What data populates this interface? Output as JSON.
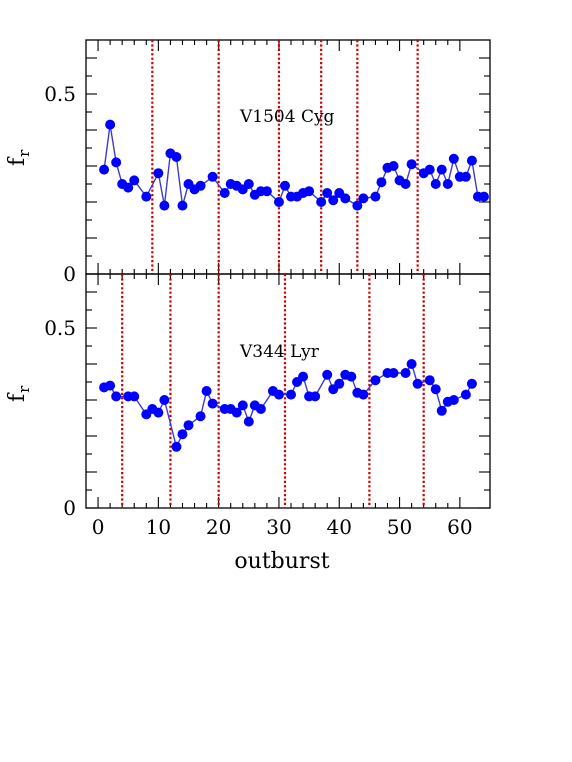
{
  "chart_data": [
    {
      "type": "line",
      "label": "V1504 Cyg",
      "ylabel": "f",
      "ylabel_sub": "r",
      "xlim": [
        -2,
        65
      ],
      "ylim": [
        0,
        0.65
      ],
      "ytick_labels": [
        "0.5",
        "0"
      ],
      "ytick_values": [
        0.5,
        0
      ],
      "x": [
        1,
        2,
        3,
        4,
        5,
        6,
        8,
        10,
        11,
        12,
        13,
        14,
        15,
        16,
        17,
        19,
        21,
        22,
        23,
        24,
        25,
        26,
        27,
        28,
        30,
        31,
        32,
        33,
        34,
        35,
        37,
        38,
        39,
        40,
        41,
        43,
        44,
        46,
        47,
        48,
        49,
        50,
        51,
        52,
        54,
        55,
        56,
        57,
        58,
        59,
        60,
        61,
        62,
        63,
        64
      ],
      "values": [
        0.29,
        0.415,
        0.31,
        0.25,
        0.24,
        0.26,
        0.215,
        0.28,
        0.19,
        0.335,
        0.325,
        0.19,
        0.25,
        0.235,
        0.245,
        0.27,
        0.225,
        0.25,
        0.245,
        0.235,
        0.25,
        0.22,
        0.23,
        0.23,
        0.2,
        0.245,
        0.215,
        0.215,
        0.225,
        0.23,
        0.2,
        0.225,
        0.205,
        0.225,
        0.21,
        0.19,
        0.21,
        0.215,
        0.255,
        0.295,
        0.3,
        0.26,
        0.25,
        0.305,
        0.28,
        0.29,
        0.25,
        0.29,
        0.25,
        0.32,
        0.27,
        0.27,
        0.315,
        0.215,
        0.215
      ],
      "vlines": [
        9,
        20,
        30,
        37,
        43,
        53
      ],
      "series_color": "#0000ff",
      "line_color": "#3c3cc8",
      "vline_color": "#c80000"
    },
    {
      "type": "line",
      "label": "V344 Lyr",
      "ylabel": "f",
      "ylabel_sub": "r",
      "xlabel": "outburst",
      "xlim": [
        -2,
        65
      ],
      "ylim": [
        0,
        0.65
      ],
      "ytick_labels": [
        "0.5",
        "0"
      ],
      "ytick_values": [
        0.5,
        0
      ],
      "xtick_labels": [
        "0",
        "10",
        "20",
        "30",
        "40",
        "50",
        "60"
      ],
      "xtick_values": [
        0,
        10,
        20,
        30,
        40,
        50,
        60
      ],
      "x": [
        1,
        2,
        3,
        5,
        6,
        8,
        9,
        10,
        11,
        13,
        14,
        15,
        17,
        18,
        19,
        21,
        22,
        23,
        24,
        25,
        26,
        27,
        29,
        30,
        32,
        33,
        34,
        35,
        36,
        38,
        39,
        40,
        41,
        42,
        43,
        44,
        46,
        48,
        49,
        51,
        52,
        53,
        55,
        56,
        57,
        58,
        59,
        61,
        62
      ],
      "values": [
        0.335,
        0.34,
        0.31,
        0.31,
        0.31,
        0.26,
        0.275,
        0.265,
        0.3,
        0.17,
        0.205,
        0.23,
        0.255,
        0.325,
        0.29,
        0.275,
        0.275,
        0.265,
        0.285,
        0.24,
        0.285,
        0.275,
        0.325,
        0.315,
        0.315,
        0.35,
        0.365,
        0.31,
        0.31,
        0.37,
        0.33,
        0.345,
        0.37,
        0.365,
        0.32,
        0.315,
        0.355,
        0.375,
        0.375,
        0.375,
        0.4,
        0.345,
        0.355,
        0.33,
        0.27,
        0.295,
        0.3,
        0.315,
        0.345
      ],
      "vlines": [
        4,
        12,
        20,
        31,
        45,
        54
      ],
      "series_color": "#0000ff",
      "line_color": "#3c3cc8",
      "vline_color": "#c80000"
    }
  ]
}
